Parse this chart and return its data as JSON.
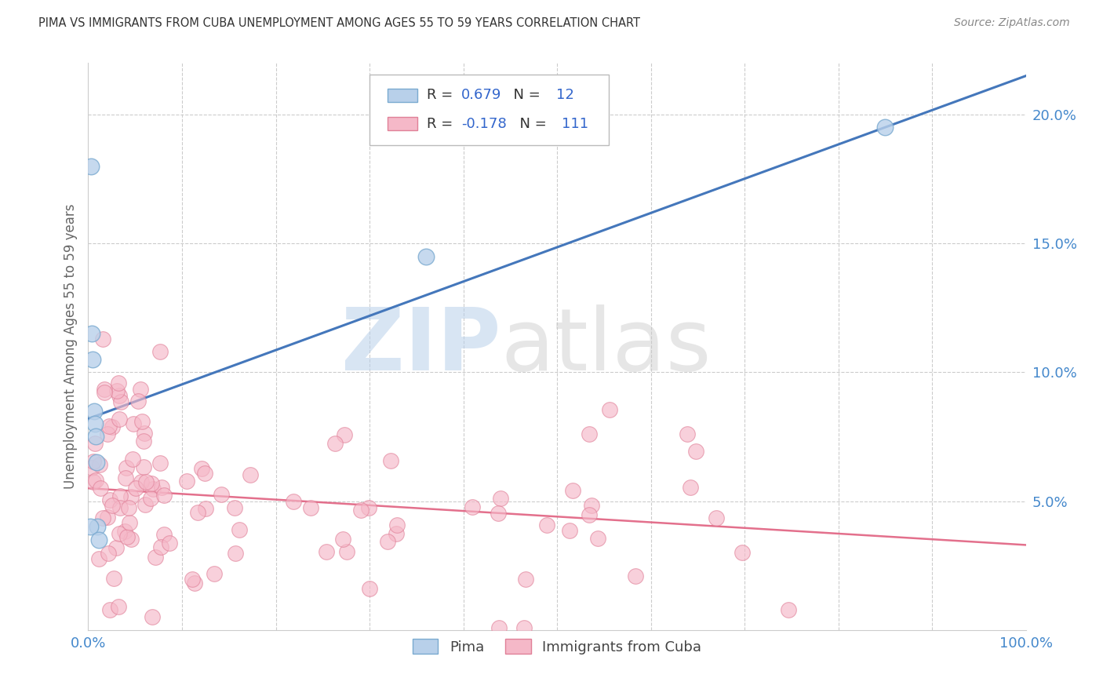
{
  "title": "PIMA VS IMMIGRANTS FROM CUBA UNEMPLOYMENT AMONG AGES 55 TO 59 YEARS CORRELATION CHART",
  "source": "Source: ZipAtlas.com",
  "ylabel": "Unemployment Among Ages 55 to 59 years",
  "xlim": [
    0,
    1.0
  ],
  "ylim": [
    0,
    0.22
  ],
  "pima_R": 0.679,
  "pima_N": 12,
  "cuba_R": -0.178,
  "cuba_N": 111,
  "pima_color": "#b8d0ea",
  "pima_edge_color": "#7aaad0",
  "pima_line_color": "#4477bb",
  "cuba_color": "#f5b8c8",
  "cuba_edge_color": "#e08098",
  "cuba_line_color": "#e06080",
  "background_color": "#ffffff",
  "grid_color": "#cccccc",
  "tick_color": "#4488cc",
  "ylabel_color": "#666666",
  "title_color": "#333333",
  "source_color": "#888888",
  "pima_x": [
    0.003,
    0.004,
    0.005,
    0.006,
    0.007,
    0.008,
    0.009,
    0.01,
    0.002,
    0.36,
    0.85,
    0.011
  ],
  "pima_y": [
    0.18,
    0.115,
    0.105,
    0.085,
    0.08,
    0.075,
    0.065,
    0.04,
    0.04,
    0.145,
    0.195,
    0.035
  ],
  "pima_line_x0": 0.0,
  "pima_line_y0": 0.082,
  "pima_line_x1": 1.0,
  "pima_line_y1": 0.215,
  "cuba_line_x0": 0.0,
  "cuba_line_y0": 0.055,
  "cuba_line_x1": 1.0,
  "cuba_line_y1": 0.033
}
